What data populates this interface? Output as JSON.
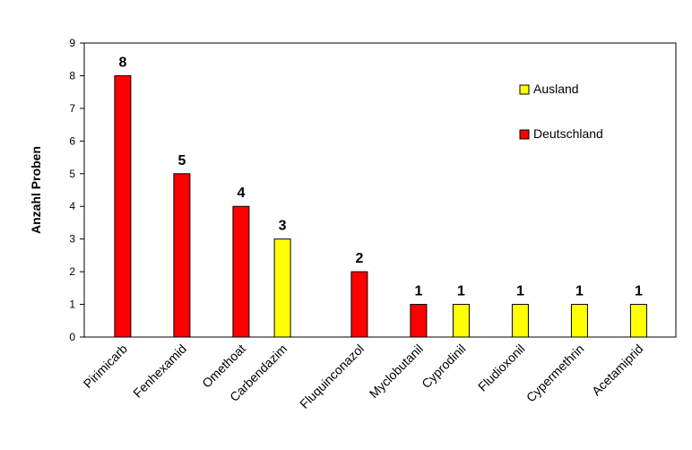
{
  "chart_data": {
    "type": "bar",
    "categories": [
      "Pirimicarb",
      "Fenhexamid",
      "Omethoat",
      "Carbendazim",
      "Fluquinconazol",
      "Myclobutanil",
      "Cyprodinil",
      "Fludioxonil",
      "Cypermethrin",
      "Acetamiprid"
    ],
    "series": [
      {
        "name": "Deutschland",
        "color": "#ff0000",
        "values": [
          8,
          5,
          4,
          null,
          2,
          1,
          null,
          null,
          null,
          null
        ]
      },
      {
        "name": "Ausland",
        "color": "#ffff00",
        "values": [
          null,
          null,
          null,
          3,
          null,
          null,
          1,
          1,
          1,
          1
        ]
      }
    ],
    "data_labels": [
      "8",
      "5",
      "4",
      "3",
      "2",
      "1",
      "1",
      "1",
      "1",
      "1"
    ],
    "ylabel": "Anzahl Proben",
    "xlabel": "",
    "ylim": [
      0,
      9
    ],
    "yticks": [
      "0",
      "1",
      "2",
      "3",
      "4",
      "5",
      "6",
      "7",
      "8",
      "9"
    ],
    "legend": {
      "placement": "top-right",
      "entries": [
        {
          "label": "Ausland",
          "color": "#ffff00"
        },
        {
          "label": "Deutschland",
          "color": "#ff0000"
        }
      ]
    },
    "grid": false
  }
}
